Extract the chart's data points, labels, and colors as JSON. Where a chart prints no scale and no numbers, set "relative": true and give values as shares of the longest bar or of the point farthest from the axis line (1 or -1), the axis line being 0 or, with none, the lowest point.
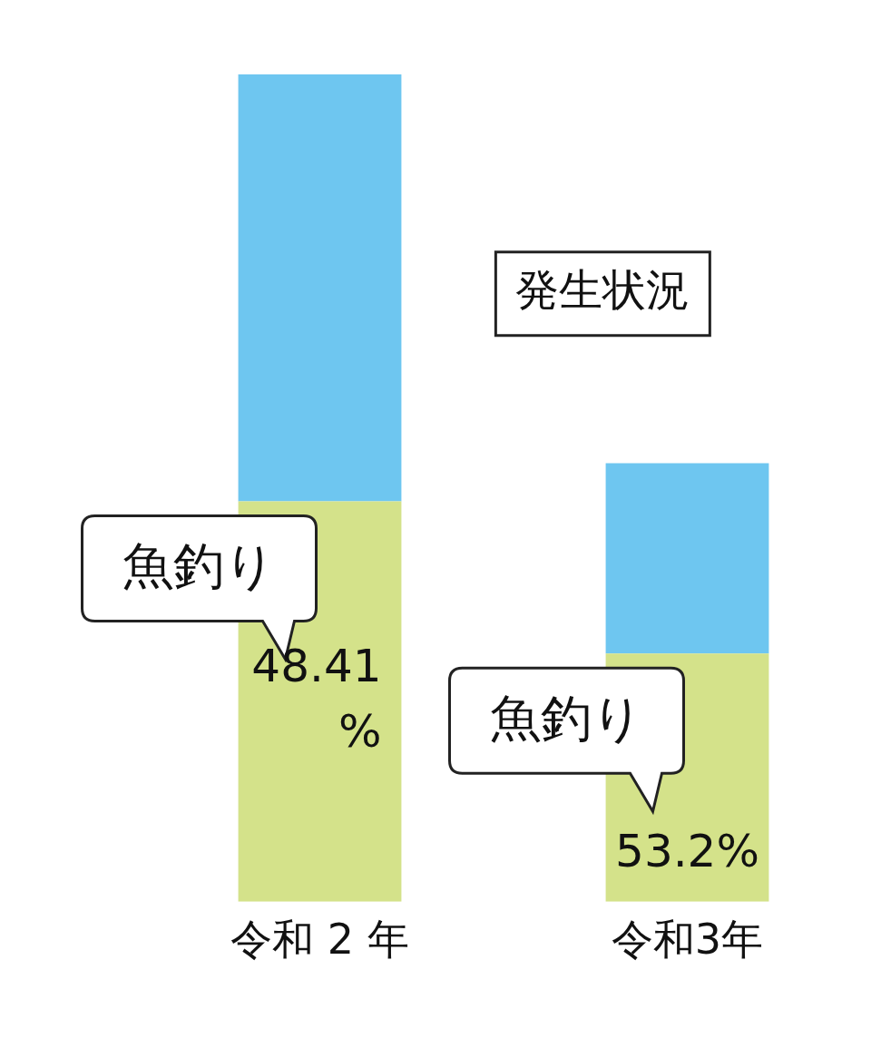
{
  "chart_data": {
    "type": "bar",
    "stacked": true,
    "relative": true,
    "categories": [
      "令和 2 年",
      "令和3年"
    ],
    "series": [
      {
        "name": "魚釣り",
        "color": "#d4e28a",
        "values": [
          0.484,
          0.3
        ]
      },
      {
        "color": "#6ec6f0",
        "values": [
          0.516,
          0.23
        ]
      }
    ],
    "annotations": [
      "発生状況",
      "48.41%",
      "53.2%"
    ],
    "legend": false,
    "grid": false
  }
}
